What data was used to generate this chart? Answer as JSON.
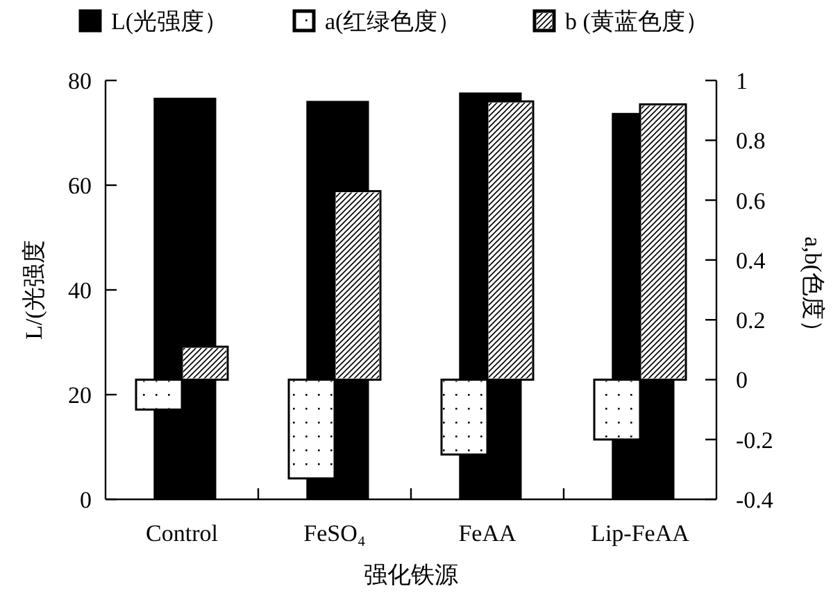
{
  "chart_data": {
    "type": "bar",
    "categories": [
      "Control",
      "FeSO₄",
      "FeAA",
      "Lip-FeAA"
    ],
    "xlabel": "强化铁源",
    "ylabel": "L/(光强度",
    "y2label": "a,b(色度）",
    "series": [
      {
        "name": "L(光强度）",
        "color": "#000000",
        "values": [
          76.7,
          76.1,
          77.7,
          73.8
        ]
      },
      {
        "name": "a(红绿色度）",
        "color": "#ffffff",
        "axis": "y2",
        "values": [
          -0.1,
          -0.33,
          -0.25,
          -0.2
        ]
      },
      {
        "name": "b (黄蓝色度）",
        "color": "#ffffff",
        "axis": "y2",
        "values": [
          0.11,
          0.63,
          0.93,
          0.92
        ]
      }
    ],
    "ylim": [
      0,
      80
    ],
    "yticks": [
      0,
      20,
      40,
      60,
      80
    ],
    "y2lim": [
      -0.4,
      1
    ],
    "y2ticks": [
      -0.4,
      -0.2,
      0,
      0.2,
      0.4,
      0.6,
      0.8,
      1
    ],
    "legend": "top",
    "grid": false
  }
}
